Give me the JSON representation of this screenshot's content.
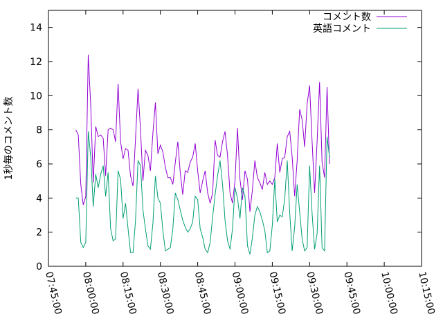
{
  "chart_data": {
    "type": "line",
    "title": "",
    "xlabel": "",
    "ylabel": "1秒毎のコメント数",
    "ylim": [
      0,
      15
    ],
    "xlim": [
      "07:45:00",
      "10:15:00"
    ],
    "y_ticks": [
      0,
      2,
      4,
      6,
      8,
      10,
      12,
      14
    ],
    "x_ticks": [
      "07:45:00",
      "08:00:00",
      "08:15:00",
      "08:30:00",
      "08:45:00",
      "09:00:00",
      "09:15:00",
      "09:30:00",
      "09:45:00",
      "10:00:00",
      "10:15:00"
    ],
    "grid": false,
    "legend_position": "top-right",
    "series": [
      {
        "name": "コメント数",
        "color": "#9400d3",
        "points": [
          [
            "07:56:00",
            8.0
          ],
          [
            "07:57:00",
            7.7
          ],
          [
            "07:58:00",
            4.8
          ],
          [
            "07:59:00",
            3.6
          ],
          [
            "08:00:00",
            4.1
          ],
          [
            "08:01:00",
            12.4
          ],
          [
            "08:02:00",
            9.4
          ],
          [
            "08:03:00",
            4.9
          ],
          [
            "08:04:00",
            8.2
          ],
          [
            "08:05:00",
            7.6
          ],
          [
            "08:06:00",
            7.7
          ],
          [
            "08:07:00",
            7.5
          ],
          [
            "08:08:00",
            5.3
          ],
          [
            "08:09:00",
            8.0
          ],
          [
            "08:10:00",
            8.1
          ],
          [
            "08:11:00",
            8.0
          ],
          [
            "08:12:00",
            7.3
          ],
          [
            "08:13:00",
            10.7
          ],
          [
            "08:14:00",
            7.3
          ],
          [
            "08:15:00",
            6.3
          ],
          [
            "08:16:00",
            6.9
          ],
          [
            "08:17:00",
            6.8
          ],
          [
            "08:18:00",
            5.3
          ],
          [
            "08:19:00",
            4.7
          ],
          [
            "08:20:00",
            7.5
          ],
          [
            "08:21:00",
            10.4
          ],
          [
            "08:22:00",
            8.0
          ],
          [
            "08:23:00",
            5.0
          ],
          [
            "08:24:00",
            6.8
          ],
          [
            "08:25:00",
            6.5
          ],
          [
            "08:26:00",
            5.6
          ],
          [
            "08:27:00",
            7.8
          ],
          [
            "08:28:00",
            9.6
          ],
          [
            "08:29:00",
            6.6
          ],
          [
            "08:30:00",
            7.1
          ],
          [
            "08:31:00",
            6.7
          ],
          [
            "08:32:00",
            5.8
          ],
          [
            "08:33:00",
            5.2
          ],
          [
            "08:34:00",
            5.2
          ],
          [
            "08:35:00",
            4.8
          ],
          [
            "08:36:00",
            6.1
          ],
          [
            "08:37:00",
            7.3
          ],
          [
            "08:38:00",
            5.5
          ],
          [
            "08:39:00",
            4.2
          ],
          [
            "08:40:00",
            5.6
          ],
          [
            "08:41:00",
            5.5
          ],
          [
            "08:42:00",
            6.1
          ],
          [
            "08:43:00",
            6.4
          ],
          [
            "08:44:00",
            7.2
          ],
          [
            "08:45:00",
            5.6
          ],
          [
            "08:46:00",
            4.3
          ],
          [
            "08:47:00",
            5.0
          ],
          [
            "08:48:00",
            5.6
          ],
          [
            "08:49:00",
            4.3
          ],
          [
            "08:50:00",
            3.7
          ],
          [
            "08:51:00",
            4.3
          ],
          [
            "08:52:00",
            7.4
          ],
          [
            "08:53:00",
            6.5
          ],
          [
            "08:54:00",
            6.4
          ],
          [
            "08:55:00",
            7.3
          ],
          [
            "08:56:00",
            7.9
          ],
          [
            "08:57:00",
            6.5
          ],
          [
            "08:58:00",
            4.3
          ],
          [
            "08:59:00",
            3.7
          ],
          [
            "09:00:00",
            5.0
          ],
          [
            "09:01:00",
            8.1
          ],
          [
            "09:02:00",
            5.1
          ],
          [
            "09:03:00",
            3.9
          ],
          [
            "09:04:00",
            5.6
          ],
          [
            "09:05:00",
            5.1
          ],
          [
            "09:06:00",
            3.2
          ],
          [
            "09:07:00",
            4.5
          ],
          [
            "09:08:00",
            6.2
          ],
          [
            "09:09:00",
            5.2
          ],
          [
            "09:10:00",
            4.9
          ],
          [
            "09:11:00",
            4.5
          ],
          [
            "09:12:00",
            5.5
          ],
          [
            "09:13:00",
            4.8
          ],
          [
            "09:14:00",
            5.0
          ],
          [
            "09:15:00",
            4.8
          ],
          [
            "09:16:00",
            5.2
          ],
          [
            "09:17:00",
            7.2
          ],
          [
            "09:18:00",
            5.5
          ],
          [
            "09:19:00",
            6.3
          ],
          [
            "09:20:00",
            6.4
          ],
          [
            "09:21:00",
            7.6
          ],
          [
            "09:22:00",
            7.9
          ],
          [
            "09:23:00",
            6.4
          ],
          [
            "09:24:00",
            4.1
          ],
          [
            "09:25:00",
            6.2
          ],
          [
            "09:26:00",
            9.2
          ],
          [
            "09:27:00",
            8.6
          ],
          [
            "09:28:00",
            7.0
          ],
          [
            "09:29:00",
            9.5
          ],
          [
            "09:30:00",
            10.6
          ],
          [
            "09:31:00",
            7.3
          ],
          [
            "09:32:00",
            4.3
          ],
          [
            "09:33:00",
            7.3
          ],
          [
            "09:34:00",
            10.8
          ],
          [
            "09:35:00",
            6.1
          ],
          [
            "09:36:00",
            5.2
          ],
          [
            "09:37:00",
            10.5
          ],
          [
            "09:38:00",
            6.0
          ]
        ]
      },
      {
        "name": "英語コメント",
        "color": "#009e73",
        "points": [
          [
            "07:56:00",
            4.0
          ],
          [
            "07:57:00",
            4.0
          ],
          [
            "07:58:00",
            1.4
          ],
          [
            "07:59:00",
            1.1
          ],
          [
            "08:00:00",
            1.4
          ],
          [
            "08:01:00",
            7.9
          ],
          [
            "08:02:00",
            6.4
          ],
          [
            "08:03:00",
            3.5
          ],
          [
            "08:04:00",
            5.4
          ],
          [
            "08:05:00",
            4.6
          ],
          [
            "08:06:00",
            5.4
          ],
          [
            "08:07:00",
            5.9
          ],
          [
            "08:08:00",
            4.1
          ],
          [
            "08:09:00",
            5.5
          ],
          [
            "08:10:00",
            2.2
          ],
          [
            "08:11:00",
            1.5
          ],
          [
            "08:12:00",
            1.6
          ],
          [
            "08:13:00",
            5.6
          ],
          [
            "08:14:00",
            5.1
          ],
          [
            "08:15:00",
            2.8
          ],
          [
            "08:16:00",
            3.7
          ],
          [
            "08:17:00",
            2.2
          ],
          [
            "08:18:00",
            0.8
          ],
          [
            "08:19:00",
            0.8
          ],
          [
            "08:20:00",
            2.7
          ],
          [
            "08:21:00",
            6.2
          ],
          [
            "08:22:00",
            5.9
          ],
          [
            "08:23:00",
            3.3
          ],
          [
            "08:24:00",
            2.2
          ],
          [
            "08:25:00",
            1.2
          ],
          [
            "08:26:00",
            1.0
          ],
          [
            "08:27:00",
            2.5
          ],
          [
            "08:28:00",
            5.3
          ],
          [
            "08:29:00",
            4.0
          ],
          [
            "08:30:00",
            3.7
          ],
          [
            "08:31:00",
            2.1
          ],
          [
            "08:32:00",
            0.9
          ],
          [
            "08:33:00",
            1.0
          ],
          [
            "08:34:00",
            1.1
          ],
          [
            "08:35:00",
            2.2
          ],
          [
            "08:36:00",
            4.3
          ],
          [
            "08:37:00",
            3.9
          ],
          [
            "08:38:00",
            3.3
          ],
          [
            "08:39:00",
            2.7
          ],
          [
            "08:40:00",
            2.3
          ],
          [
            "08:41:00",
            2.0
          ],
          [
            "08:42:00",
            2.2
          ],
          [
            "08:43:00",
            2.6
          ],
          [
            "08:44:00",
            4.1
          ],
          [
            "08:45:00",
            3.9
          ],
          [
            "08:46:00",
            2.2
          ],
          [
            "08:47:00",
            1.7
          ],
          [
            "08:48:00",
            1.0
          ],
          [
            "08:49:00",
            0.8
          ],
          [
            "08:50:00",
            1.4
          ],
          [
            "08:51:00",
            2.9
          ],
          [
            "08:52:00",
            4.2
          ],
          [
            "08:53:00",
            5.3
          ],
          [
            "08:54:00",
            6.2
          ],
          [
            "08:55:00",
            4.8
          ],
          [
            "08:56:00",
            2.7
          ],
          [
            "08:57:00",
            1.5
          ],
          [
            "08:58:00",
            1.0
          ],
          [
            "08:59:00",
            2.2
          ],
          [
            "09:00:00",
            4.6
          ],
          [
            "09:01:00",
            4.0
          ],
          [
            "09:02:00",
            2.8
          ],
          [
            "09:03:00",
            4.6
          ],
          [
            "09:04:00",
            4.1
          ],
          [
            "09:05:00",
            1.2
          ],
          [
            "09:06:00",
            0.7
          ],
          [
            "09:07:00",
            1.7
          ],
          [
            "09:08:00",
            3.0
          ],
          [
            "09:09:00",
            3.5
          ],
          [
            "09:10:00",
            3.2
          ],
          [
            "09:11:00",
            2.7
          ],
          [
            "09:12:00",
            2.1
          ],
          [
            "09:13:00",
            0.8
          ],
          [
            "09:14:00",
            0.9
          ],
          [
            "09:15:00",
            2.4
          ],
          [
            "09:16:00",
            5.1
          ],
          [
            "09:17:00",
            2.6
          ],
          [
            "09:18:00",
            3.0
          ],
          [
            "09:19:00",
            2.9
          ],
          [
            "09:20:00",
            4.0
          ],
          [
            "09:21:00",
            6.2
          ],
          [
            "09:22:00",
            3.1
          ],
          [
            "09:23:00",
            0.9
          ],
          [
            "09:24:00",
            2.3
          ],
          [
            "09:25:00",
            4.8
          ],
          [
            "09:26:00",
            3.2
          ],
          [
            "09:27:00",
            1.6
          ],
          [
            "09:28:00",
            0.9
          ],
          [
            "09:29:00",
            1.1
          ],
          [
            "09:30:00",
            5.9
          ],
          [
            "09:31:00",
            3.1
          ],
          [
            "09:32:00",
            1.0
          ],
          [
            "09:33:00",
            1.9
          ],
          [
            "09:34:00",
            5.9
          ],
          [
            "09:35:00",
            1.1
          ],
          [
            "09:36:00",
            0.9
          ],
          [
            "09:37:00",
            7.6
          ],
          [
            "09:38:00",
            6.4
          ]
        ]
      }
    ]
  }
}
